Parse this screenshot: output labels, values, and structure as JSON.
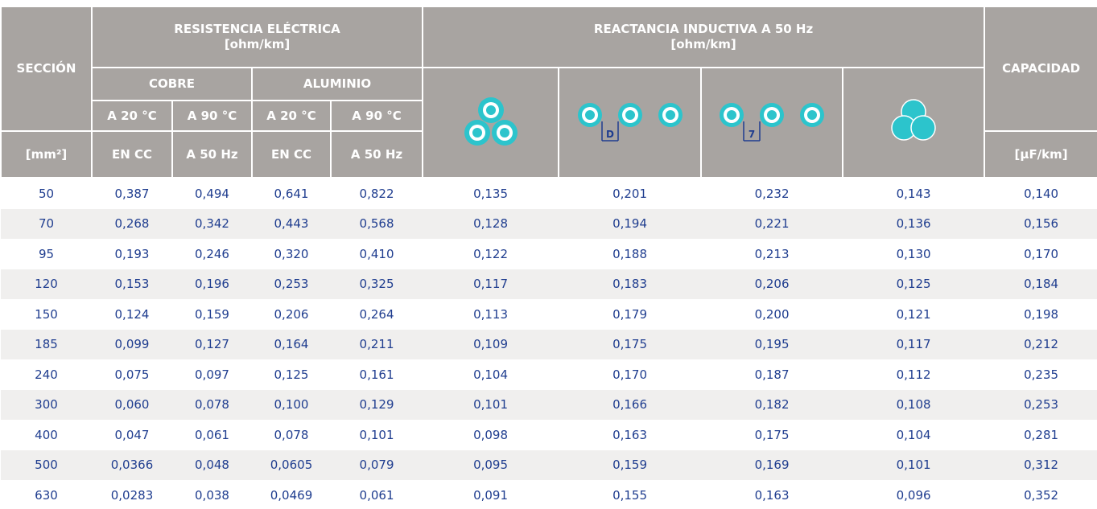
{
  "header": {
    "seccion": "SECCIÓN",
    "resistencia": "RESISTENCIA ELÉCTRICA",
    "resistencia_unit": "[ohm/km]",
    "reactancia": "REACTANCIA INDUCTIVA A 50 Hz",
    "reactancia_unit": "[ohm/km]",
    "capacidad": "CAPACIDAD",
    "cobre": "COBRE",
    "aluminio": "ALUMINIO",
    "temps": [
      "A 20 °C",
      "A 90 °C",
      "A 20 °C",
      "A 90 °C"
    ],
    "seccion_unit": "[mm²]",
    "conditions": [
      "EN CC",
      "A 50 Hz",
      "EN CC",
      "A 50 Hz"
    ],
    "capacidad_unit": "[µF/km]",
    "spacing_labels": [
      "D",
      "7"
    ]
  },
  "rows": [
    [
      "50",
      "0,387",
      "0,494",
      "0,641",
      "0,822",
      "0,135",
      "0,201",
      "0,232",
      "0,143",
      "0,140"
    ],
    [
      "70",
      "0,268",
      "0,342",
      "0,443",
      "0,568",
      "0,128",
      "0,194",
      "0,221",
      "0,136",
      "0,156"
    ],
    [
      "95",
      "0,193",
      "0,246",
      "0,320",
      "0,410",
      "0,122",
      "0,188",
      "0,213",
      "0,130",
      "0,170"
    ],
    [
      "120",
      "0,153",
      "0,196",
      "0,253",
      "0,325",
      "0,117",
      "0,183",
      "0,206",
      "0,125",
      "0,184"
    ],
    [
      "150",
      "0,124",
      "0,159",
      "0,206",
      "0,264",
      "0,113",
      "0,179",
      "0,200",
      "0,121",
      "0,198"
    ],
    [
      "185",
      "0,099",
      "0,127",
      "0,164",
      "0,211",
      "0,109",
      "0,175",
      "0,195",
      "0,117",
      "0,212"
    ],
    [
      "240",
      "0,075",
      "0,097",
      "0,125",
      "0,161",
      "0,104",
      "0,170",
      "0,187",
      "0,112",
      "0,235"
    ],
    [
      "300",
      "0,060",
      "0,078",
      "0,100",
      "0,129",
      "0,101",
      "0,166",
      "0,182",
      "0,108",
      "0,253"
    ],
    [
      "400",
      "0,047",
      "0,061",
      "0,078",
      "0,101",
      "0,098",
      "0,163",
      "0,175",
      "0,104",
      "0,281"
    ],
    [
      "500",
      "0,0366",
      "0,048",
      "0,0605",
      "0,079",
      "0,095",
      "0,159",
      "0,169",
      "0,101",
      "0,312"
    ],
    [
      "630",
      "0,0283",
      "0,038",
      "0,0469",
      "0,061",
      "0,091",
      "0,155",
      "0,163",
      "0,096",
      "0,352"
    ]
  ]
}
